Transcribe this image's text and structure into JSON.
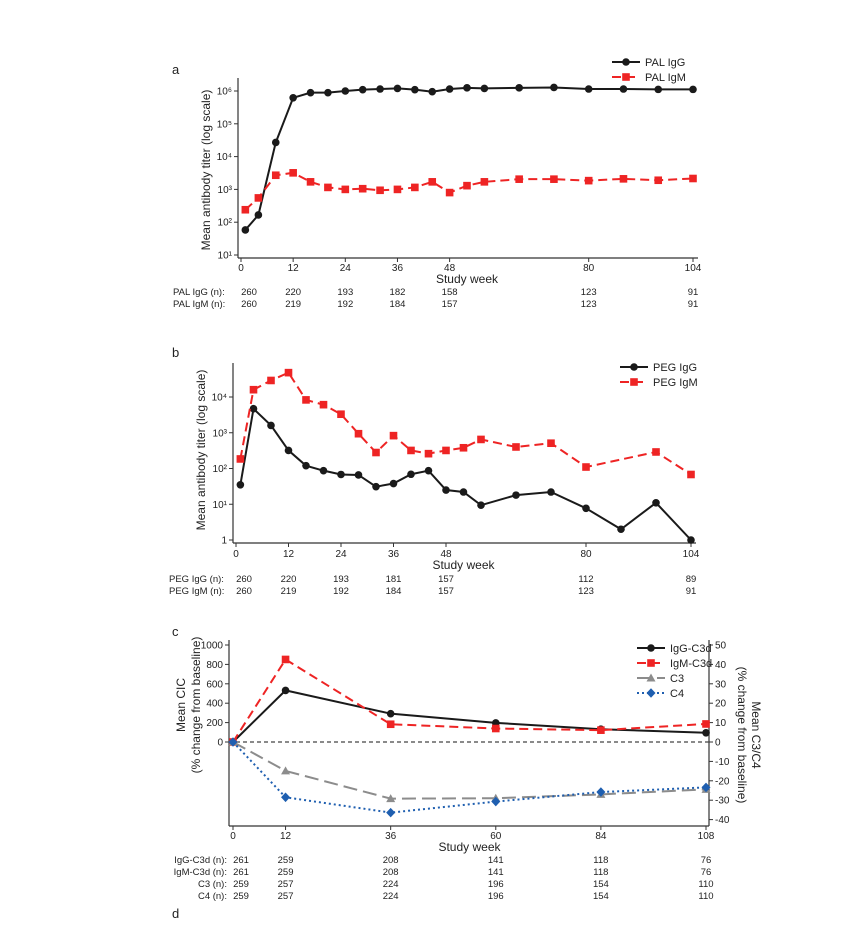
{
  "chart_data": [
    {
      "type": "line",
      "panel_label": "a",
      "xlabel": "Study week",
      "ylabel": "Mean antibody titer (log scale)",
      "yscale": "log",
      "xlim": [
        0,
        104
      ],
      "ylim": [
        10,
        1000000
      ],
      "xticks": [
        0,
        12,
        24,
        36,
        48,
        80,
        104
      ],
      "xtick_labels": [
        "0",
        "12",
        "24",
        "36",
        "48",
        "80",
        "104"
      ],
      "yticks": [
        10,
        100,
        1000,
        10000,
        100000,
        1000000
      ],
      "ytick_labels": [
        "10¹",
        "10²",
        "10³",
        "10⁴",
        "10⁵",
        "10⁶"
      ],
      "legend_position": "top-right",
      "series": [
        {
          "name": "PAL IgG",
          "color": "#1a1a1a",
          "marker": "circle",
          "dash": "solid",
          "axis": "left",
          "x": [
            1,
            4,
            8,
            12,
            16,
            20,
            24,
            28,
            32,
            36,
            40,
            44,
            48,
            52,
            56,
            64,
            72,
            80,
            88,
            96,
            104
          ],
          "y": [
            58,
            166,
            27000,
            620000,
            890000,
            890000,
            1000000,
            1100000,
            1150000,
            1200000,
            1100000,
            950000,
            1150000,
            1250000,
            1200000,
            1250000,
            1280000,
            1150000,
            1150000,
            1120000,
            1120000
          ]
        },
        {
          "name": "PAL IgM",
          "color": "#ee2424",
          "marker": "square",
          "dash": "dashed",
          "axis": "left",
          "x": [
            1,
            4,
            8,
            12,
            16,
            20,
            24,
            28,
            32,
            36,
            40,
            44,
            48,
            52,
            56,
            64,
            72,
            80,
            88,
            96,
            104
          ],
          "y": [
            240,
            550,
            2700,
            3200,
            1700,
            1150,
            1000,
            1050,
            940,
            1000,
            1150,
            1700,
            800,
            1300,
            1700,
            2050,
            2050,
            1850,
            2100,
            1900,
            2150
          ]
        }
      ],
      "n_table": {
        "columns": [
          0,
          12,
          24,
          36,
          48,
          80,
          104
        ],
        "rows": [
          {
            "label": "PAL IgG (n):",
            "values": [
              "260",
              "220",
              "193",
              "182",
              "158",
              "123",
              "91"
            ]
          },
          {
            "label": "PAL IgM (n):",
            "values": [
              "260",
              "219",
              "192",
              "184",
              "157",
              "123",
              "91"
            ]
          }
        ]
      }
    },
    {
      "type": "line",
      "panel_label": "b",
      "xlabel": "Study week",
      "ylabel": "Mean antibody titer (log scale)",
      "yscale": "log",
      "xlim": [
        0,
        104
      ],
      "ylim": [
        1,
        60000
      ],
      "xticks": [
        0,
        12,
        24,
        36,
        48,
        80,
        104
      ],
      "xtick_labels": [
        "0",
        "12",
        "24",
        "36",
        "48",
        "80",
        "104"
      ],
      "yticks": [
        1,
        10,
        100,
        1000,
        10000
      ],
      "ytick_labels": [
        "1",
        "10¹",
        "10²",
        "10³",
        "10⁴"
      ],
      "legend_position": "top-right",
      "series": [
        {
          "name": "PEG IgG",
          "color": "#1a1a1a",
          "marker": "circle",
          "dash": "solid",
          "axis": "left",
          "x": [
            1,
            4,
            8,
            12,
            16,
            20,
            24,
            28,
            32,
            36,
            40,
            44,
            48,
            52,
            56,
            64,
            72,
            80,
            88,
            96,
            104
          ],
          "y": [
            35,
            4700,
            1600,
            320,
            120,
            87,
            68,
            66,
            31,
            38,
            69,
            87,
            25,
            22,
            9.4,
            18,
            22,
            7.7,
            2,
            11,
            1
          ]
        },
        {
          "name": "PEG IgM",
          "color": "#ee2424",
          "marker": "square",
          "dash": "dashed",
          "axis": "left",
          "x": [
            1,
            4,
            8,
            12,
            16,
            20,
            24,
            28,
            32,
            36,
            40,
            44,
            48,
            52,
            56,
            64,
            72,
            80,
            96,
            104
          ],
          "y": [
            185,
            16000,
            29000,
            48000,
            8300,
            6100,
            3300,
            940,
            280,
            830,
            320,
            260,
            320,
            380,
            650,
            400,
            510,
            110,
            290,
            68
          ]
        }
      ],
      "n_table": {
        "columns": [
          0,
          12,
          24,
          36,
          48,
          80,
          104
        ],
        "rows": [
          {
            "label": "PEG IgG (n):",
            "values": [
              "260",
              "220",
              "193",
              "181",
              "157",
              "112",
              "89"
            ]
          },
          {
            "label": "PEG IgM (n):",
            "values": [
              "260",
              "219",
              "192",
              "184",
              "157",
              "123",
              "91"
            ]
          }
        ]
      }
    },
    {
      "type": "line",
      "panel_label": "c",
      "xlabel": "Study week",
      "ylabel": [
        "Mean CIC",
        "(% change from baseline)"
      ],
      "ylabel_right": [
        "Mean C3/C4",
        "(% change from baseline)"
      ],
      "yscale": "linear",
      "xlim": [
        0,
        108
      ],
      "ylim": [
        0,
        1000
      ],
      "ylim_right": [
        -40,
        50
      ],
      "xticks": [
        0,
        12,
        36,
        60,
        84,
        108
      ],
      "xtick_labels": [
        "0",
        "12",
        "36",
        "60",
        "84",
        "108"
      ],
      "yticks": [
        0,
        200,
        400,
        600,
        800,
        1000
      ],
      "ytick_labels": [
        "0",
        "200",
        "400",
        "600",
        "800",
        "1000"
      ],
      "yticks_right": [
        50,
        40,
        30,
        20,
        10,
        0,
        -10,
        -20,
        -30,
        -40
      ],
      "ytick_labels_right": [
        "50",
        "40",
        "30",
        "20",
        "10",
        "0",
        "-10",
        "-20",
        "-30",
        "-40"
      ],
      "reference_line": 0,
      "legend_position": "top-right",
      "series": [
        {
          "name": "IgG-C3d",
          "color": "#1a1a1a",
          "marker": "circle",
          "dash": "solid",
          "axis": "left",
          "x": [
            0,
            12,
            36,
            60,
            84,
            108
          ],
          "y": [
            0,
            532,
            292,
            197,
            132,
            95
          ]
        },
        {
          "name": "IgM-C3d",
          "color": "#ee2424",
          "marker": "square",
          "dash": "dashed",
          "axis": "left",
          "x": [
            0,
            12,
            36,
            60,
            84,
            108
          ],
          "y": [
            0,
            851,
            183,
            139,
            122,
            186
          ]
        },
        {
          "name": "C3",
          "color": "#8c8c8c",
          "marker": "triangle",
          "dash": "longdash",
          "axis": "right",
          "x": [
            0,
            12,
            36,
            60,
            84,
            108
          ],
          "y": [
            0,
            -14.9,
            -29.2,
            -29,
            -27,
            -24.4
          ]
        },
        {
          "name": "C4",
          "color": "#1f5fb0",
          "marker": "diamond",
          "dash": "dotted",
          "axis": "right",
          "x": [
            0,
            12,
            36,
            60,
            84,
            108
          ],
          "y": [
            0,
            -28.5,
            -36.4,
            -30.7,
            -25.8,
            -23.4
          ]
        }
      ],
      "n_table": {
        "columns": [
          0,
          12,
          36,
          60,
          84,
          108
        ],
        "rows": [
          {
            "label": "IgG-C3d (n):",
            "values": [
              "261",
              "259",
              "208",
              "141",
              "118",
              "76"
            ]
          },
          {
            "label": "IgM-C3d (n):",
            "values": [
              "261",
              "259",
              "208",
              "141",
              "118",
              "76"
            ]
          },
          {
            "label": "C3 (n):",
            "values": [
              "259",
              "257",
              "224",
              "196",
              "154",
              "110"
            ]
          },
          {
            "label": "C4 (n):",
            "values": [
              "259",
              "257",
              "224",
              "196",
              "154",
              "110"
            ]
          }
        ]
      }
    }
  ],
  "next_panel_label": "d"
}
